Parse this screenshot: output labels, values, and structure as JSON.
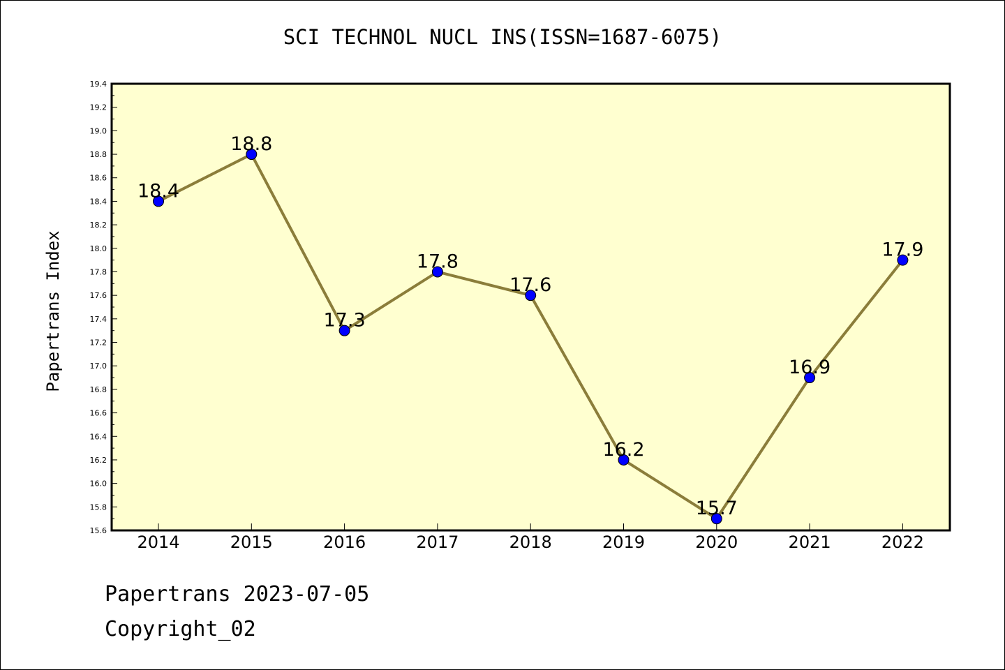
{
  "title": "SCI TECHNOL NUCL INS(ISSN=1687-6075)",
  "footer": {
    "line1": "Papertrans 2023-07-05",
    "line2": "Copyright_02"
  },
  "colors": {
    "plot_background": "#ffffd0",
    "line": "#8b7d3a",
    "marker": "#0000ff"
  },
  "chart_data": {
    "type": "line",
    "title": "SCI TECHNOL NUCL INS(ISSN=1687-6075)",
    "xlabel": "",
    "ylabel": "Papertrans Index",
    "categories": [
      "2014",
      "2015",
      "2016",
      "2017",
      "2018",
      "2019",
      "2020",
      "2021",
      "2022"
    ],
    "series": [
      {
        "values": [
          18.4,
          18.8,
          17.3,
          17.8,
          17.6,
          16.2,
          15.7,
          16.9,
          17.9
        ]
      }
    ],
    "data_labels": [
      "18.4",
      "18.8",
      "17.3",
      "17.8",
      "17.6",
      "16.2",
      "15.7",
      "16.9",
      "17.9"
    ],
    "ylim": [
      15.6,
      19.4
    ],
    "y_ticks": [
      "15.6",
      "15.8",
      "16.0",
      "16.2",
      "16.4",
      "16.6",
      "16.8",
      "17.0",
      "17.2",
      "17.4",
      "17.6",
      "17.8",
      "18.0",
      "18.2",
      "18.4",
      "18.6",
      "18.8",
      "19.0",
      "19.2",
      "19.4"
    ],
    "grid": false,
    "legend": "none"
  }
}
